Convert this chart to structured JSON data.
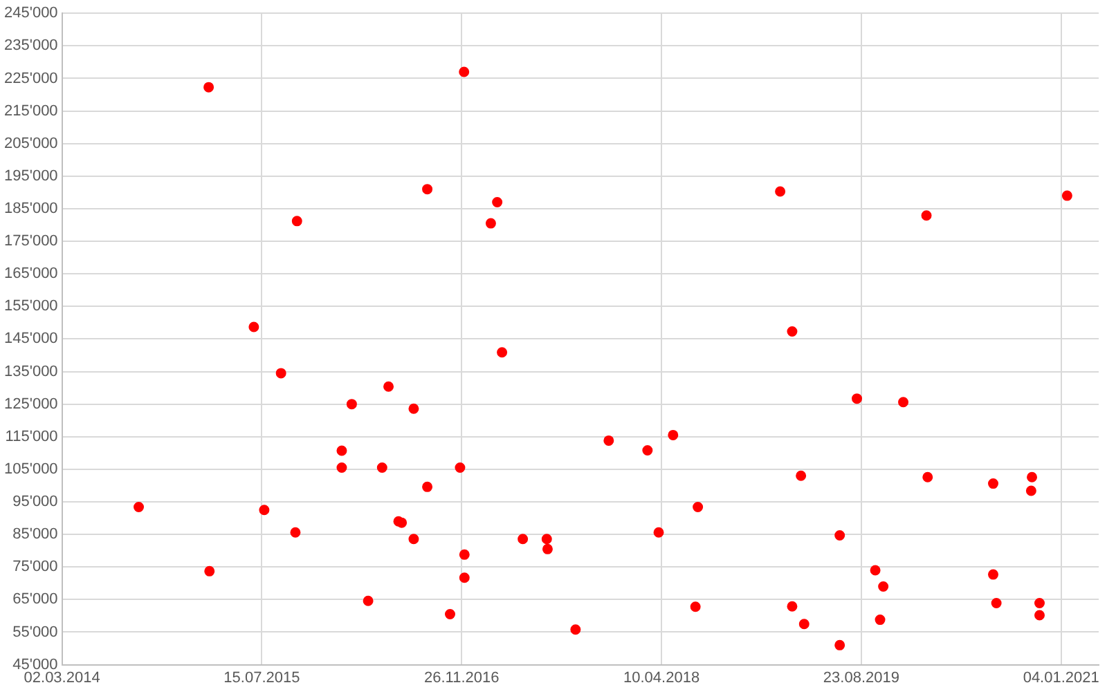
{
  "chart_data": {
    "type": "scatter",
    "marker": "circle",
    "grid": true,
    "legend": false,
    "xlim": [
      "2014-03-02",
      "2021-04-08"
    ],
    "xticks": [
      {
        "value": "2014-03-02",
        "label": "02.03.2014"
      },
      {
        "value": "2015-07-15",
        "label": "15.07.2015"
      },
      {
        "value": "2016-11-26",
        "label": "26.11.2016"
      },
      {
        "value": "2018-04-10",
        "label": "10.04.2018"
      },
      {
        "value": "2019-08-23",
        "label": "23.08.2019"
      },
      {
        "value": "2021-01-04",
        "label": "04.01.2021"
      }
    ],
    "ylim": [
      45000,
      245000
    ],
    "yticks": [
      {
        "value": 45000,
        "label": "45'000"
      },
      {
        "value": 55000,
        "label": "55'000"
      },
      {
        "value": 65000,
        "label": "65'000"
      },
      {
        "value": 75000,
        "label": "75'000"
      },
      {
        "value": 85000,
        "label": "85'000"
      },
      {
        "value": 95000,
        "label": "95'000"
      },
      {
        "value": 105000,
        "label": "105'000"
      },
      {
        "value": 115000,
        "label": "115'000"
      },
      {
        "value": 125000,
        "label": "125'000"
      },
      {
        "value": 135000,
        "label": "135'000"
      },
      {
        "value": 145000,
        "label": "145'000"
      },
      {
        "value": 155000,
        "label": "155'000"
      },
      {
        "value": 165000,
        "label": "165'000"
      },
      {
        "value": 175000,
        "label": "175'000"
      },
      {
        "value": 185000,
        "label": "185'000"
      },
      {
        "value": 195000,
        "label": "195'000"
      },
      {
        "value": 205000,
        "label": "205'000"
      },
      {
        "value": 215000,
        "label": "215'000"
      },
      {
        "value": 225000,
        "label": "225'000"
      },
      {
        "value": 235000,
        "label": "235'000"
      },
      {
        "value": 245000,
        "label": "245'000"
      }
    ],
    "series": [
      {
        "color": "#ff0000",
        "x": [
          "2015-03-04",
          "2015-10-11",
          "2015-06-25",
          "2016-12-02",
          "2016-09-01",
          "2017-02-23",
          "2017-02-07",
          "2017-03-07",
          "2019-02-01",
          "2020-02-02",
          "2021-01-19",
          "2019-03-03",
          "2015-09-01",
          "2016-05-27",
          "2016-02-25",
          "2016-07-29",
          "2016-01-31",
          "2016-01-31",
          "2016-05-11",
          "2014-09-10",
          "2015-07-21",
          "2016-06-21",
          "2016-06-29",
          "2015-10-07",
          "2016-07-29",
          "2015-03-06",
          "2016-04-06",
          "2016-11-22",
          "2016-09-01",
          "2017-04-28",
          "2017-06-27",
          "2017-06-29",
          "2016-12-03",
          "2016-12-03",
          "2016-10-28",
          "2017-09-07",
          "2017-11-29",
          "2018-03-06",
          "2018-05-09",
          "2018-07-10",
          "2018-04-03",
          "2018-07-04",
          "2019-08-12",
          "2019-12-06",
          "2019-03-25",
          "2020-02-05",
          "2020-07-18",
          "2020-10-23",
          "2020-10-21",
          "2019-06-30",
          "2019-09-27",
          "2019-10-17",
          "2020-07-18",
          "2019-03-03",
          "2019-04-02",
          "2019-10-09",
          "2019-06-30",
          "2020-07-26",
          "2020-11-11",
          "2020-11-11"
        ],
        "values": [
          222300,
          181200,
          148700,
          227000,
          191000,
          187000,
          180500,
          140900,
          190300,
          182900,
          189000,
          147300,
          134500,
          130400,
          125000,
          123600,
          110700,
          105500,
          105500,
          93400,
          92500,
          89000,
          88600,
          85600,
          83600,
          73700,
          64600,
          105500,
          99600,
          83600,
          83600,
          80500,
          78800,
          71700,
          60500,
          55800,
          113800,
          110800,
          115500,
          93400,
          85600,
          62800,
          126700,
          125600,
          103000,
          102600,
          100600,
          102600,
          98400,
          84700,
          74000,
          69000,
          72700,
          62900,
          57500,
          58800,
          51000,
          63900,
          63900,
          60200
        ]
      }
    ]
  }
}
